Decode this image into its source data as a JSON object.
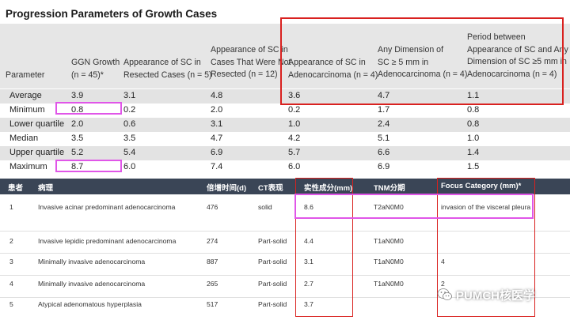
{
  "top_table": {
    "title": "Progression Parameters of Growth Cases",
    "headers": [
      [
        "Parameter"
      ],
      [
        "GGN Growth",
        "(n = 45)*"
      ],
      [
        "Appearance of SC in",
        "Resected Cases (n = 5)"
      ],
      [
        "Appearance of SC in",
        "Cases That Were Not",
        "Resected (n = 12)"
      ],
      [
        "Appearance of SC in",
        "Adenocarcinoma (n = 4)"
      ],
      [
        "Any Dimension of",
        "SC ≥ 5 mm in",
        "Adenocarcinoma (n = 4)"
      ],
      [
        "Period between",
        "Appearance of SC and Any",
        "Dimension of SC ≥5 mm in",
        "Adenocarcinoma (n = 4)"
      ]
    ],
    "rows": [
      [
        "Average",
        "3.9",
        "3.1",
        "4.8",
        "3.6",
        "4.7",
        "1.1"
      ],
      [
        "Minimum",
        "0.8",
        "0.2",
        "2.0",
        "0.2",
        "1.7",
        "0.8"
      ],
      [
        "Lower quartile",
        "2.0",
        "0.6",
        "3.1",
        "1.0",
        "2.4",
        "0.8"
      ],
      [
        "Median",
        "3.5",
        "3.5",
        "4.7",
        "4.2",
        "5.1",
        "1.0"
      ],
      [
        "Upper quartile",
        "5.2",
        "5.4",
        "6.9",
        "5.7",
        "6.6",
        "1.4"
      ],
      [
        "Maximum",
        "8.7",
        "6.0",
        "7.4",
        "6.0",
        "6.9",
        "1.5"
      ]
    ]
  },
  "bottom_table": {
    "headers": [
      "患者",
      "病理",
      "倍增时间(d)",
      "CT表现",
      "实性成分(mm)",
      "TNM分期",
      "Focus Category (mm)*"
    ],
    "rows": [
      [
        "1",
        "Invasive acinar predominant adenocarcinoma",
        "476",
        "solid",
        "8.6",
        "T2aN0M0",
        "invasion of the visceral pleura"
      ],
      [
        "2",
        "Invasive lepidic predominant adenocarcinoma",
        "274",
        "Part-solid",
        "4.4",
        "T1aN0M0",
        ""
      ],
      [
        "3",
        "Minimally invasive adenocarcinoma",
        "887",
        "Part-solid",
        "3.1",
        "T1aN0M0",
        "4"
      ],
      [
        "4",
        "Minimally invasive adenocarcinoma",
        "265",
        "Part-solid",
        "2.7",
        "T1aN0M0",
        "2"
      ],
      [
        "5",
        "Atypical adenomatous hyperplasia",
        "517",
        "Part-solid",
        "3.7",
        "",
        ""
      ]
    ]
  },
  "watermark": {
    "text": "PUMCH核医学",
    "icon": "wechat-icon"
  },
  "colors": {
    "highlight_red": "#d9211f",
    "highlight_pink": "#e056e8",
    "header_dark": "#3a4556"
  }
}
